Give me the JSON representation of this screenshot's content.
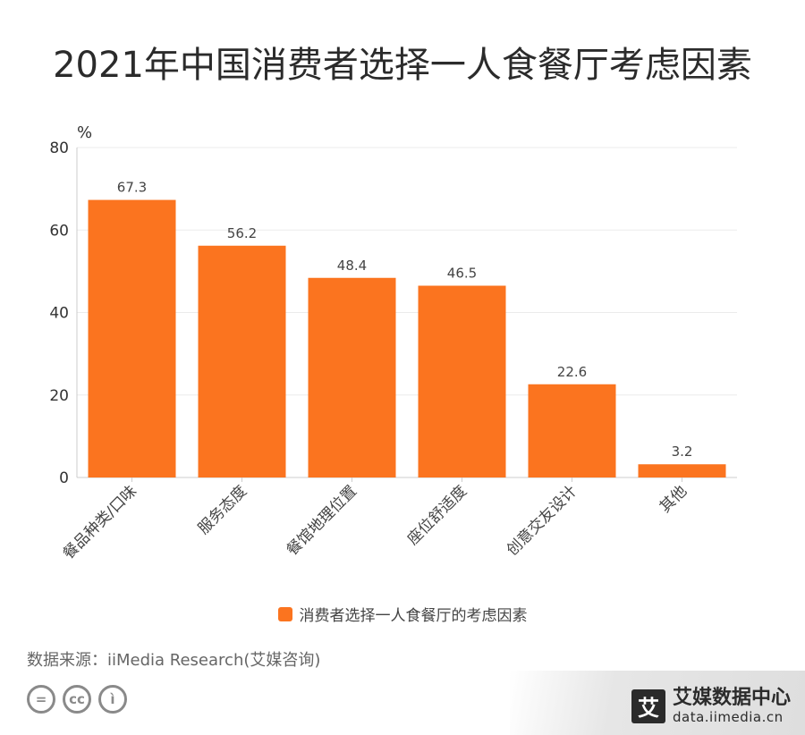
{
  "chart_data": {
    "type": "bar",
    "title": "2021年中国消费者选择一人食餐厅考虑因素",
    "ylabel": "%",
    "xlabel": "",
    "ylim": [
      0,
      80
    ],
    "yticks": [
      0,
      20,
      40,
      60,
      80
    ],
    "categories": [
      "餐品种类/口味",
      "服务态度",
      "餐馆地理位置",
      "座位舒适度",
      "创意交友设计",
      "其他"
    ],
    "series": [
      {
        "name": "消费者选择一人食餐厅的考虑因素",
        "values": [
          67.3,
          56.2,
          48.4,
          46.5,
          22.6,
          3.2
        ],
        "labels": [
          "67.3",
          "56.2",
          "48.4",
          "46.5",
          "22.6",
          "3.2"
        ]
      }
    ],
    "legend_position": "bottom",
    "grid": true
  },
  "colors": {
    "bar": "#fb741f",
    "grid": "#ebebeb",
    "axis": "#cccccc"
  },
  "source": "数据来源：iiMedia Research(艾媒咨询)",
  "cc_icons": [
    {
      "icon": "equals-icon",
      "text": "="
    },
    {
      "icon": "cc-icon",
      "text": "cc"
    },
    {
      "icon": "person-icon",
      "text": "ì"
    }
  ],
  "brand": {
    "logo": "艾",
    "name": "艾媒数据中心",
    "url": "data.iimedia.cn"
  }
}
